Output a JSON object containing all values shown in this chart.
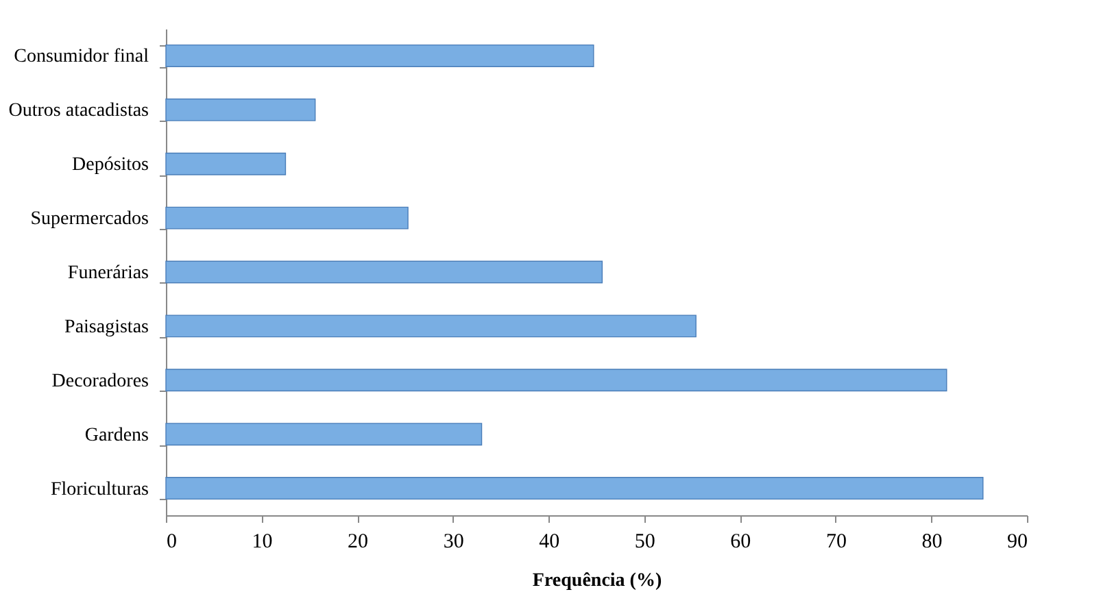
{
  "chart_data": {
    "type": "bar",
    "orientation": "horizontal",
    "xlabel": "Frequência (%)",
    "categories": [
      "Consumidor final",
      "Outros atacadistas",
      "Depósitos",
      "Supermercados",
      "Funerárias",
      "Paisagistas",
      "Decoradores",
      "Gardens",
      "Floriculturas"
    ],
    "values": [
      44.7,
      15.6,
      12.5,
      25.3,
      45.6,
      55.4,
      81.6,
      33.0,
      85.4
    ],
    "color": "#79aee3",
    "xlim": [
      0,
      90
    ],
    "xticks": [
      0,
      10,
      20,
      30,
      40,
      50,
      60,
      70,
      80,
      90
    ],
    "grid": false
  }
}
